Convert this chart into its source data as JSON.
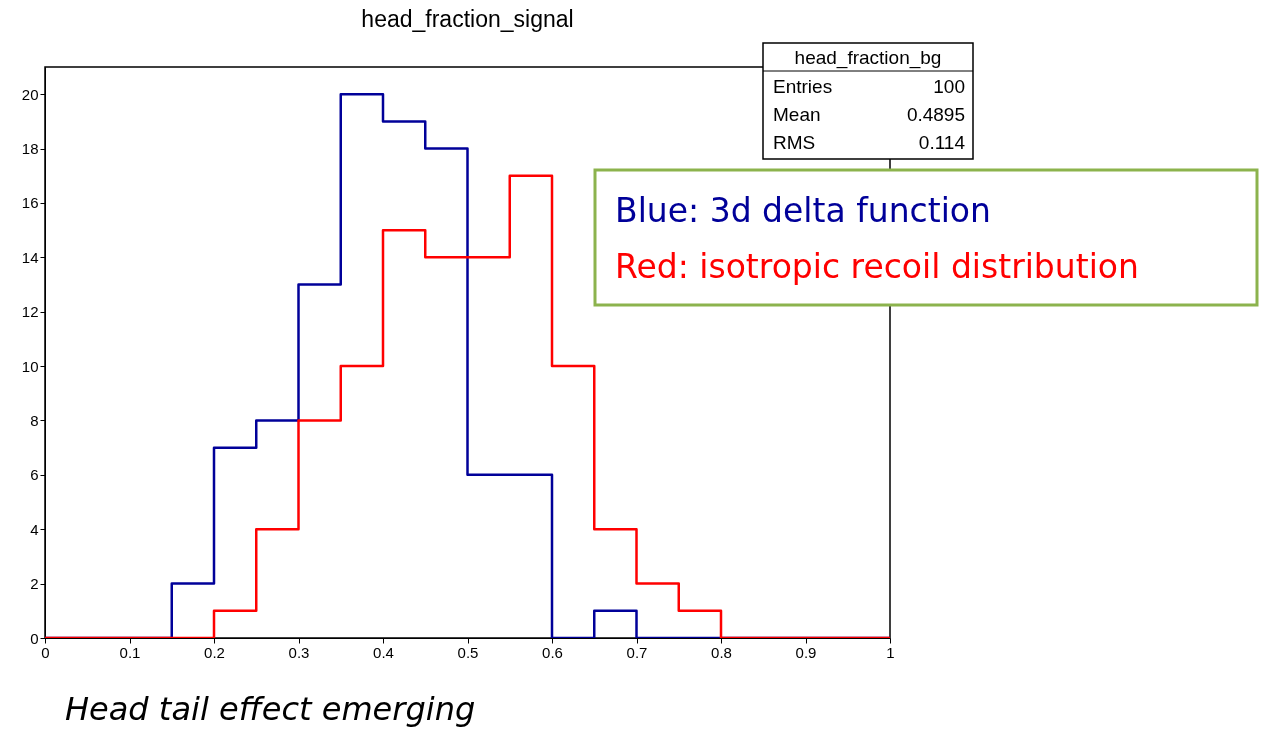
{
  "chart_data": {
    "type": "histogram",
    "title": "head_fraction_signal",
    "bins": [
      0,
      0.05,
      0.1,
      0.15,
      0.2,
      0.25,
      0.3,
      0.35,
      0.4,
      0.45,
      0.5,
      0.55,
      0.6,
      0.65,
      0.7,
      0.75,
      0.8,
      0.85,
      0.9,
      0.95,
      1
    ],
    "series": [
      {
        "name": "Blue: 3d delta function",
        "color": "#000099",
        "values": [
          0,
          0,
          0,
          2,
          7,
          8,
          13,
          20,
          19,
          18,
          6,
          6,
          0,
          1,
          0,
          0,
          0,
          0,
          0,
          0
        ]
      },
      {
        "name": "Red: isotropic recoil distribution",
        "color": "#ff0000",
        "values": [
          0,
          0,
          0,
          0,
          1,
          4,
          8,
          10,
          15,
          14,
          14,
          17,
          10,
          4,
          2,
          1,
          0,
          0,
          0,
          0
        ]
      }
    ],
    "xlim": [
      0,
      1
    ],
    "xticks": [
      0,
      0.1,
      0.2,
      0.3,
      0.4,
      0.5,
      0.6,
      0.7,
      0.8,
      0.9,
      1
    ],
    "ylim": [
      0,
      21
    ],
    "yticks": [
      0,
      2,
      4,
      6,
      8,
      10,
      12,
      14,
      16,
      18,
      20
    ],
    "grid": false,
    "legend": "top right",
    "annotations": [
      "head_fraction_bg",
      "Entries 100",
      "Mean 0.4895",
      "RMS 0.114",
      "Head tail effect emerging"
    ]
  }
}
